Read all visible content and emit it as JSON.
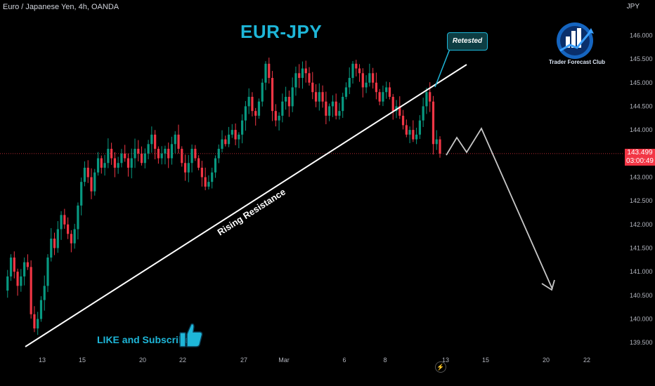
{
  "header": {
    "symbol_info": "Euro / Japanese Yen, 4h, OANDA",
    "currency": "JPY"
  },
  "price_tag": {
    "price": "143.499",
    "countdown": "03:00:49"
  },
  "chart_data": {
    "type": "candlestick",
    "title": "EUR-JPY",
    "ylim": [
      139.25,
      146.6
    ],
    "y_ticks": [
      "146.000",
      "145.500",
      "145.000",
      "144.500",
      "144.000",
      "143.500",
      "143.000",
      "142.500",
      "142.000",
      "141.500",
      "141.000",
      "140.500",
      "140.000",
      "139.500"
    ],
    "x_ticks": [
      "13",
      "15",
      "20",
      "22",
      "27",
      "Mar",
      "6",
      "8",
      "13",
      "15",
      "20",
      "22"
    ],
    "current_price": 143.499,
    "ohlc_path": [
      140.6,
      140.9,
      141.3,
      141.0,
      140.7,
      140.9,
      141.2,
      141.1,
      140.1,
      139.8,
      140.0,
      140.4,
      140.7,
      141.3,
      141.7,
      141.5,
      141.9,
      142.2,
      142.0,
      141.8,
      141.6,
      141.9,
      142.4,
      142.9,
      143.2,
      143.0,
      142.7,
      143.1,
      143.4,
      143.2,
      143.3,
      143.6,
      143.4,
      143.2,
      143.3,
      143.5,
      143.4,
      143.2,
      143.4,
      143.6,
      143.5,
      143.3,
      143.5,
      143.7,
      143.9,
      143.6,
      143.4,
      143.5,
      143.6,
      143.4,
      143.7,
      143.9,
      143.6,
      143.3,
      143.1,
      143.3,
      143.6,
      143.4,
      143.2,
      143.0,
      142.8,
      142.9,
      143.1,
      143.4,
      143.6,
      143.8,
      143.7,
      143.9,
      144.0,
      143.8,
      143.9,
      144.2,
      144.5,
      144.7,
      144.4,
      144.3,
      144.6,
      145.0,
      145.4,
      145.1,
      144.4,
      144.2,
      144.3,
      144.6,
      144.7,
      144.5,
      144.9,
      145.2,
      145.1,
      145.3,
      145.2,
      145.0,
      144.8,
      144.6,
      144.8,
      144.6,
      144.3,
      144.5,
      144.6,
      144.3,
      144.4,
      144.7,
      144.9,
      145.1,
      145.4,
      145.3,
      145.2,
      144.9,
      145.0,
      145.2,
      145.0,
      144.8,
      144.6,
      144.8,
      144.9,
      144.7,
      144.4,
      144.5,
      144.3,
      144.1,
      143.9,
      144.0,
      143.8,
      143.9,
      144.2,
      144.5,
      144.8,
      144.6,
      143.7,
      143.8,
      143.5
    ],
    "candle_spacing": "uniform",
    "annotations": [
      {
        "type": "trendline",
        "label": "Rising Resistance",
        "from": [
          0,
          139.6
        ],
        "to": [
          148,
          145.3
        ]
      },
      {
        "type": "callout",
        "label": "Retested"
      },
      {
        "type": "projection",
        "points": [
          [
            143.5
          ],
          [
            143.8
          ],
          [
            143.5
          ],
          [
            144.0
          ],
          [
            140.7
          ]
        ]
      }
    ],
    "colors": {
      "up": "#089981",
      "down": "#f23645",
      "accent": "#1eb6d8"
    }
  },
  "annotations": {
    "resistance_label": "Rising Resistance",
    "retested_label": "Retested",
    "like_text": "LIKE and Subscribe"
  },
  "logo": {
    "text": "Trader Forecast Club"
  }
}
